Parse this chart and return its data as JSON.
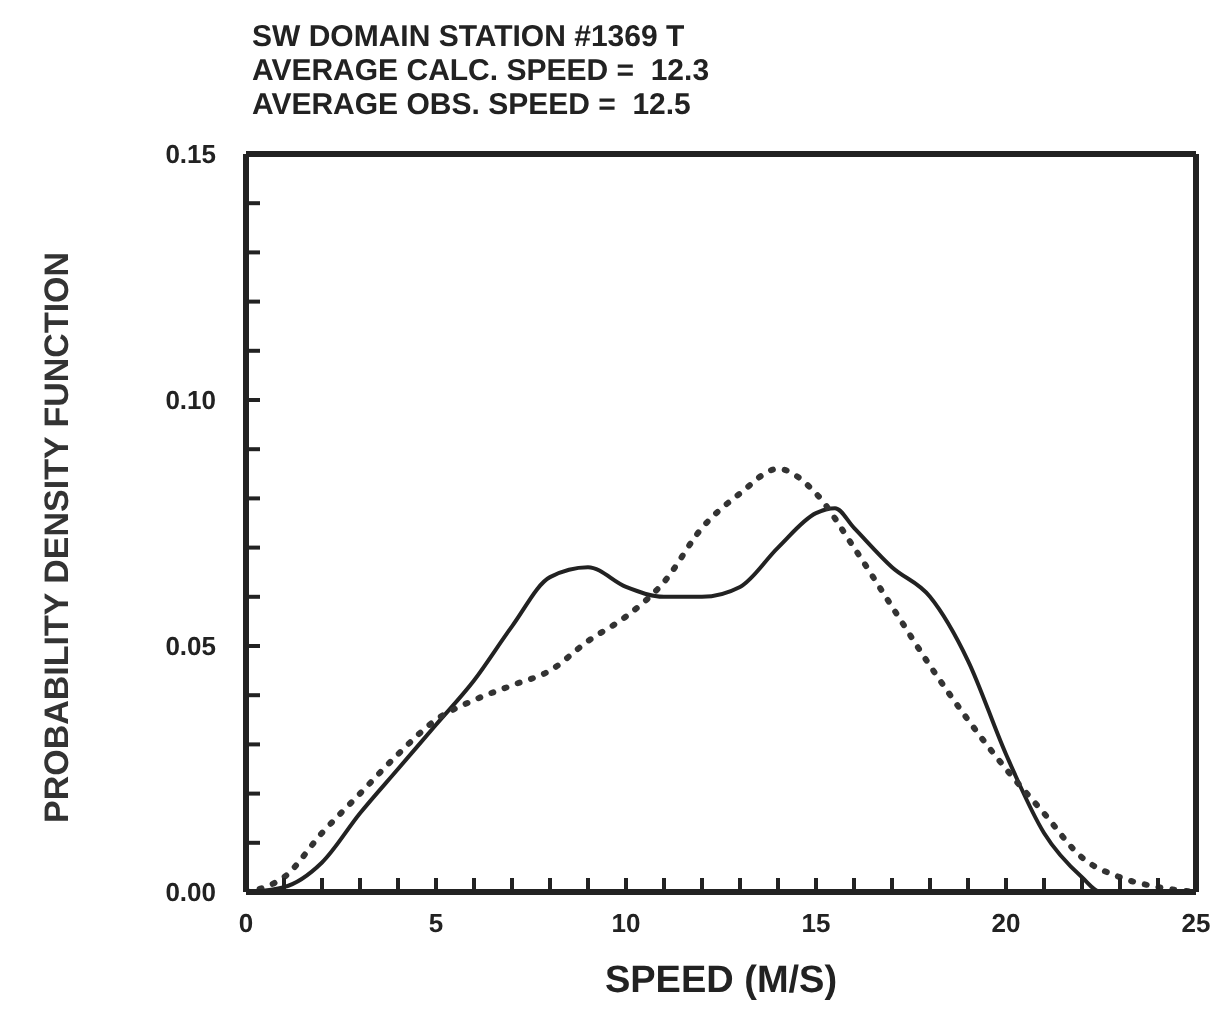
{
  "chart_data": {
    "type": "line",
    "title": "SW DOMAIN STATION #1369 T",
    "annotations": [
      "AVERAGE CALC. SPEED =  12.3",
      "AVERAGE OBS. SPEED =  12.5"
    ],
    "xlabel": "SPEED (M/S)",
    "ylabel": "PROBABILITY DENSITY FUNCTION",
    "xlim": [
      0,
      25
    ],
    "ylim": [
      0,
      0.15
    ],
    "xticks": [
      0,
      {
        "value": 1,
        "label": null
      },
      {
        "value": 2,
        "label": null
      },
      {
        "value": 3,
        "label": null
      },
      {
        "value": 4,
        "label": null
      },
      5,
      {
        "value": 6,
        "label": null
      },
      {
        "value": 7,
        "label": null
      },
      {
        "value": 8,
        "label": null
      },
      {
        "value": 9,
        "label": null
      },
      10,
      {
        "value": 11,
        "label": null
      },
      {
        "value": 12,
        "label": null
      },
      {
        "value": 13,
        "label": null
      },
      {
        "value": 14,
        "label": null
      },
      15,
      {
        "value": 16,
        "label": null
      },
      {
        "value": 17,
        "label": null
      },
      {
        "value": 18,
        "label": null
      },
      {
        "value": 19,
        "label": null
      },
      20,
      {
        "value": 21,
        "label": null
      },
      {
        "value": 22,
        "label": null
      },
      {
        "value": 23,
        "label": null
      },
      {
        "value": 24,
        "label": null
      },
      25
    ],
    "yticks": [
      {
        "value": 0,
        "label": "0.00"
      },
      {
        "value": 0.01,
        "label": null
      },
      {
        "value": 0.02,
        "label": null
      },
      {
        "value": 0.03,
        "label": null
      },
      {
        "value": 0.04,
        "label": null
      },
      {
        "value": 0.05,
        "label": "0.05"
      },
      {
        "value": 0.06,
        "label": null
      },
      {
        "value": 0.07,
        "label": null
      },
      {
        "value": 0.08,
        "label": null
      },
      {
        "value": 0.09,
        "label": null
      },
      {
        "value": 0.1,
        "label": "0.10"
      },
      {
        "value": 0.11,
        "label": null
      },
      {
        "value": 0.12,
        "label": null
      },
      {
        "value": 0.13,
        "label": null
      },
      {
        "value": 0.14,
        "label": null
      },
      {
        "value": 0.15,
        "label": "0.15"
      }
    ],
    "grid": false,
    "legend": false,
    "marker": "none",
    "series": [
      {
        "color": "#222222",
        "line_style": "solid",
        "x": [
          0,
          1,
          2,
          3,
          4,
          5,
          6,
          7,
          8,
          9,
          10,
          11,
          12,
          13,
          14,
          15,
          15.5,
          16,
          17,
          18,
          19,
          20,
          21,
          22,
          22.5,
          23
        ],
        "values": [
          0,
          0.001,
          0.006,
          0.016,
          0.025,
          0.034,
          0.043,
          0.054,
          0.064,
          0.066,
          0.062,
          0.06,
          0.06,
          0.062,
          0.07,
          0.077,
          0.078,
          0.074,
          0.066,
          0.06,
          0.047,
          0.028,
          0.012,
          0.003,
          0,
          0
        ]
      },
      {
        "color": "#333333",
        "line_style": "dotted",
        "x": [
          0,
          0.5,
          1,
          2,
          3,
          4,
          5,
          6,
          7,
          8,
          9,
          10,
          11,
          12,
          13,
          14,
          15,
          16,
          17,
          18,
          19,
          20,
          21,
          22,
          23,
          24,
          25
        ],
        "values": [
          0,
          0.001,
          0.003,
          0.012,
          0.02,
          0.028,
          0.035,
          0.039,
          0.042,
          0.045,
          0.051,
          0.056,
          0.063,
          0.074,
          0.081,
          0.086,
          0.081,
          0.07,
          0.058,
          0.046,
          0.035,
          0.025,
          0.016,
          0.007,
          0.003,
          0.001,
          0
        ]
      }
    ]
  }
}
